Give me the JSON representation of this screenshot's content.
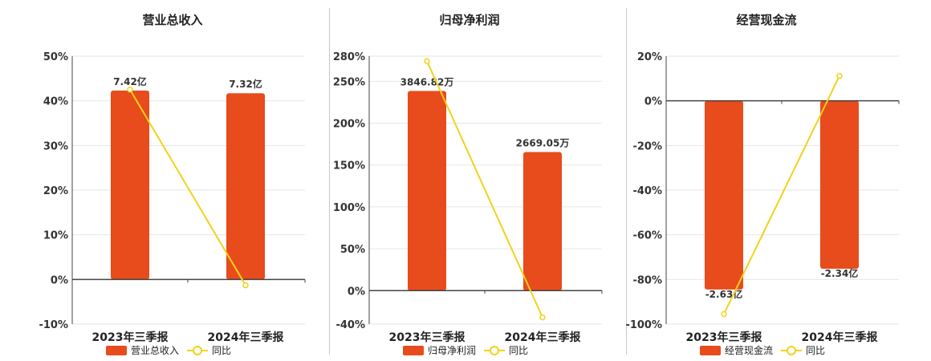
{
  "colors": {
    "bar": "#e84b1c",
    "line": "#f2d21b",
    "grid": "#e6e6e6",
    "axis": "#444444"
  },
  "chart_data": [
    {
      "type": "bar",
      "title": "营业总收入",
      "categories": [
        "2023年三季报",
        "2024年三季报"
      ],
      "ylim": [
        -10,
        50
      ],
      "yticks": [
        "50%",
        "40%",
        "30%",
        "20%",
        "10%",
        "0%",
        "-10%"
      ],
      "series": [
        {
          "name": "营业总收入",
          "type": "bar",
          "values": [
            42.3,
            41.7
          ],
          "labels": [
            "7.42亿",
            "7.32亿"
          ]
        },
        {
          "name": "同比",
          "type": "line",
          "values": [
            42.5,
            -1.3
          ]
        }
      ]
    },
    {
      "type": "bar",
      "title": "归母净利润",
      "categories": [
        "2023年三季报",
        "2024年三季报"
      ],
      "ylim": [
        -40,
        280
      ],
      "yticks": [
        "280%",
        "250%",
        "200%",
        "150%",
        "100%",
        "50%",
        "0%",
        "-40%"
      ],
      "series": [
        {
          "name": "归母净利润",
          "type": "bar",
          "values": [
            238.5,
            165.5
          ],
          "labels": [
            "3846.82万",
            "2669.05万"
          ]
        },
        {
          "name": "同比",
          "type": "line",
          "values": [
            274,
            -32
          ]
        }
      ]
    },
    {
      "type": "bar",
      "title": "经营现金流",
      "categories": [
        "2023年三季报",
        "2024年三季报"
      ],
      "ylim": [
        -100,
        20
      ],
      "yticks": [
        "20%",
        "0%",
        "-20%",
        "-40%",
        "-60%",
        "-80%",
        "-100%"
      ],
      "series": [
        {
          "name": "经营现金流",
          "type": "bar",
          "values": [
            -84.5,
            -75.2
          ],
          "labels": [
            "-2.63亿",
            "-2.34亿"
          ]
        },
        {
          "name": "同比",
          "type": "line",
          "values": [
            -95.5,
            11.2
          ]
        }
      ]
    }
  ]
}
